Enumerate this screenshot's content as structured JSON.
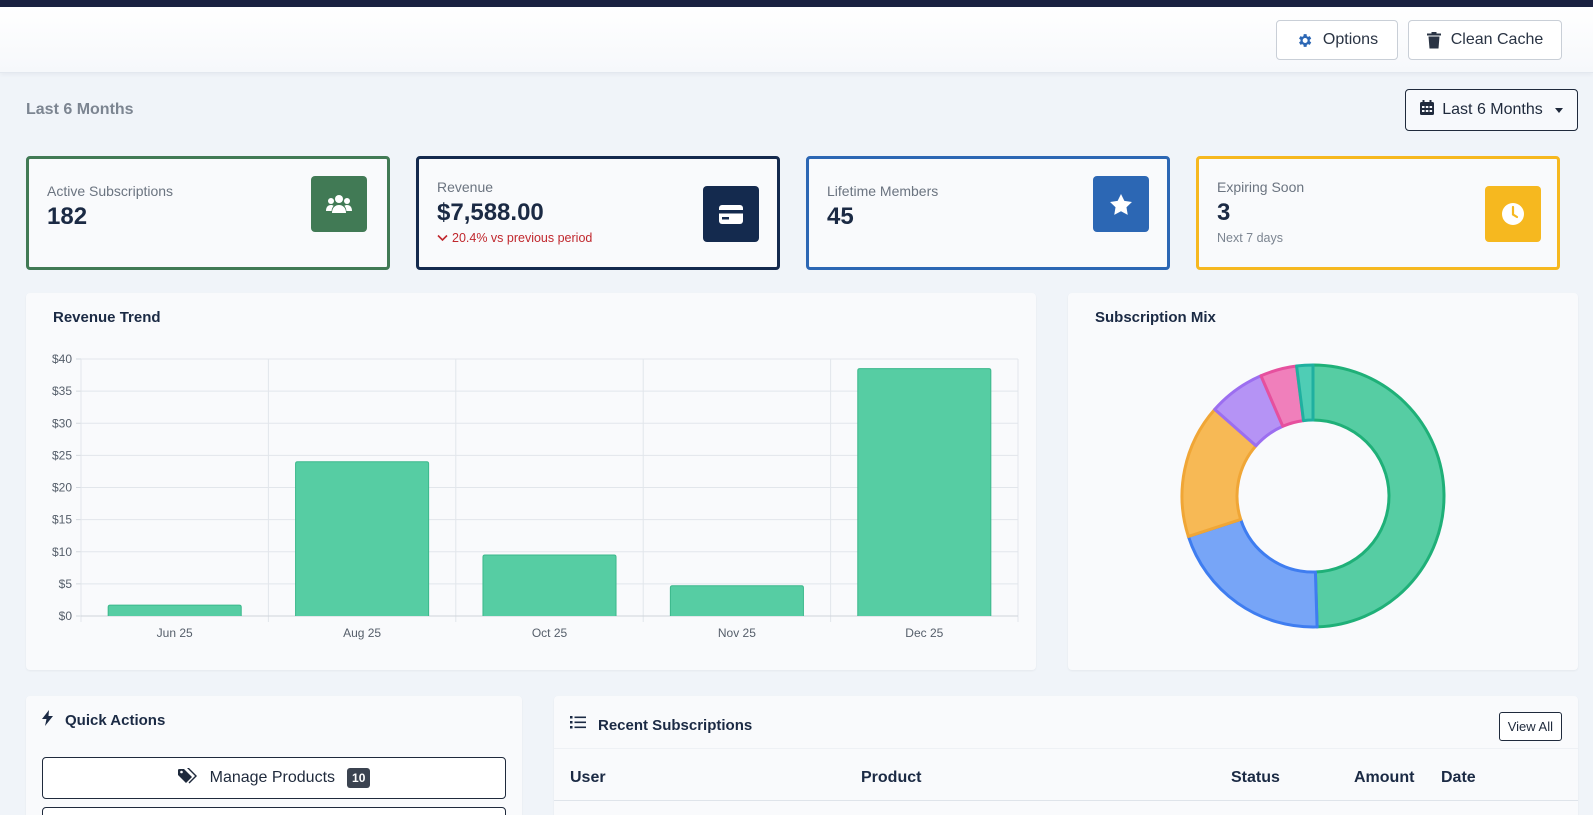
{
  "header": {
    "options_label": "Options",
    "clean_cache_label": "Clean Cache"
  },
  "period": {
    "label": "Last 6 Months",
    "selected": "Last 6 Months"
  },
  "stats": [
    {
      "label": "Active Subscriptions",
      "value": "182",
      "sub": "",
      "icon": "users-icon",
      "color": "#417a55"
    },
    {
      "label": "Revenue",
      "value": "$7,588.00",
      "sub": "20.4% vs previous period",
      "icon": "credit-card-icon",
      "color": "#142a4e"
    },
    {
      "label": "Lifetime Members",
      "value": "45",
      "sub": "",
      "icon": "star-icon",
      "color": "#2c67b4"
    },
    {
      "label": "Expiring Soon",
      "value": "3",
      "sub": "Next 7 days",
      "icon": "clock-icon",
      "color": "#f6b81f"
    }
  ],
  "colors": {
    "decline": "#c0272d",
    "bar_fill": "#56cda3",
    "bar_stroke": "#3bb88b"
  },
  "revenue_trend": {
    "title": "Revenue Trend"
  },
  "subscription_mix": {
    "title": "Subscription Mix"
  },
  "quick_actions": {
    "title": "Quick Actions",
    "items": [
      {
        "label": "Manage Products",
        "badge": "10"
      }
    ]
  },
  "recent_subscriptions": {
    "title": "Recent Subscriptions",
    "view_all_label": "View All",
    "columns": [
      "User",
      "Product",
      "Status",
      "Amount",
      "Date"
    ]
  },
  "chart_data": [
    {
      "type": "bar",
      "title": "Revenue Trend",
      "categories": [
        "Jun 25",
        "Aug 25",
        "Oct 25",
        "Nov 25",
        "Dec 25"
      ],
      "values": [
        1.7,
        24,
        9.5,
        4.7,
        38.5
      ],
      "y_ticks": [
        "$0",
        "$5",
        "$10",
        "$15",
        "$20",
        "$25",
        "$30",
        "$35",
        "$40"
      ],
      "ylim": [
        0,
        40
      ],
      "grid": true,
      "xlabel": "",
      "ylabel": ""
    },
    {
      "type": "pie",
      "title": "Subscription Mix",
      "donut": true,
      "values": [
        49.5,
        20.5,
        16.5,
        7.0,
        4.5,
        2.0
      ],
      "colors": [
        "#56cda3",
        "#77a5f7",
        "#f7b955",
        "#b593f5",
        "#f07fbb",
        "#4fcdb5"
      ],
      "stroke_colors": [
        "#1fb078",
        "#3f7df0",
        "#f0a636",
        "#9c6ef0",
        "#e6509e",
        "#1fb0a0"
      ]
    }
  ]
}
